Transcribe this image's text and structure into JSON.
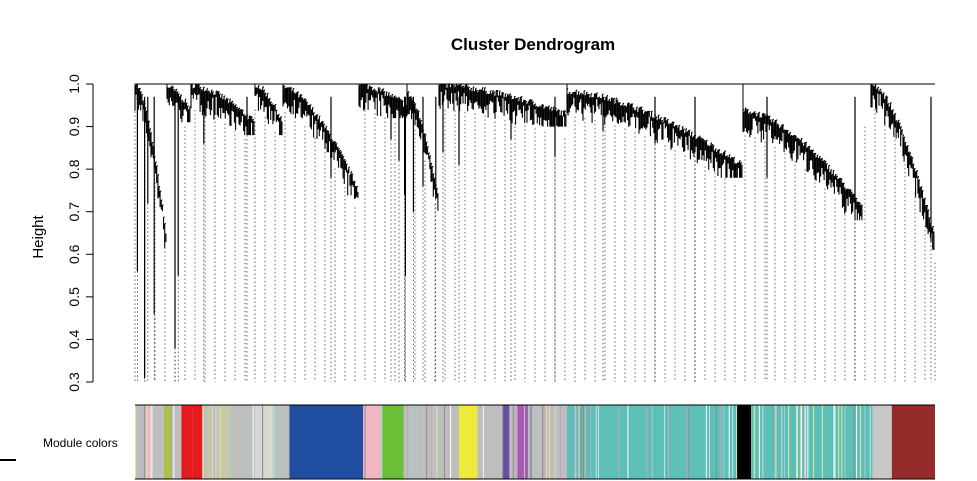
{
  "chart_data": {
    "type": "dendrogram",
    "title": "Cluster Dendrogram",
    "ylabel": "Height",
    "xlabel": "",
    "ylim": [
      0.3,
      1.0
    ],
    "yticks": [
      0.3,
      0.4,
      0.5,
      0.6,
      0.7,
      0.8,
      0.9,
      1.0
    ],
    "ytick_labels": [
      "0.3",
      "0.4",
      "0.5",
      "0.6",
      "0.7",
      "0.8",
      "0.9",
      "1.0"
    ],
    "module_colors_label": "Module colors",
    "clusters": [
      {
        "from": 0.0,
        "to": 0.04,
        "top": 0.995,
        "bottom": 0.62
      },
      {
        "from": 0.04,
        "to": 0.07,
        "top": 0.985,
        "bottom": 0.93
      },
      {
        "from": 0.07,
        "to": 0.15,
        "top": 0.99,
        "bottom": 0.9
      },
      {
        "from": 0.15,
        "to": 0.185,
        "top": 0.99,
        "bottom": 0.9
      },
      {
        "from": 0.185,
        "to": 0.28,
        "top": 0.985,
        "bottom": 0.74
      },
      {
        "from": 0.28,
        "to": 0.34,
        "top": 0.99,
        "bottom": 0.94
      },
      {
        "from": 0.34,
        "to": 0.38,
        "top": 0.97,
        "bottom": 0.72
      },
      {
        "from": 0.38,
        "to": 0.54,
        "top": 0.99,
        "bottom": 0.92
      },
      {
        "from": 0.54,
        "to": 0.76,
        "top": 0.975,
        "bottom": 0.8
      },
      {
        "from": 0.76,
        "to": 0.91,
        "top": 0.93,
        "bottom": 0.7
      },
      {
        "from": 0.92,
        "to": 1.0,
        "top": 0.995,
        "bottom": 0.63
      }
    ],
    "dips": [
      {
        "x": 0.003,
        "height": 0.56
      },
      {
        "x": 0.012,
        "height": 0.31
      },
      {
        "x": 0.016,
        "height": 0.72
      },
      {
        "x": 0.024,
        "height": 0.46
      },
      {
        "x": 0.05,
        "height": 0.38
      },
      {
        "x": 0.054,
        "height": 0.55
      },
      {
        "x": 0.086,
        "height": 0.86
      },
      {
        "x": 0.14,
        "height": 0.88
      },
      {
        "x": 0.245,
        "height": 0.78
      },
      {
        "x": 0.32,
        "height": 0.87
      },
      {
        "x": 0.337,
        "height": 0.74
      },
      {
        "x": 0.33,
        "height": 0.82
      },
      {
        "x": 0.348,
        "height": 0.7
      },
      {
        "x": 0.36,
        "height": 0.76
      },
      {
        "x": 0.376,
        "height": 0.73
      },
      {
        "x": 0.338,
        "height": 0.55
      },
      {
        "x": 0.385,
        "height": 0.84
      },
      {
        "x": 0.405,
        "height": 0.81
      },
      {
        "x": 0.47,
        "height": 0.87
      },
      {
        "x": 0.525,
        "height": 0.83
      },
      {
        "x": 0.585,
        "height": 0.89
      },
      {
        "x": 0.65,
        "height": 0.86
      },
      {
        "x": 0.7,
        "height": 0.84
      },
      {
        "x": 0.79,
        "height": 0.78
      },
      {
        "x": 0.9,
        "height": 0.72
      },
      {
        "x": 0.995,
        "height": 0.63
      }
    ],
    "module_colors": [
      {
        "from": 0.0,
        "to": 0.014,
        "color": "#bebebe"
      },
      {
        "from": 0.014,
        "to": 0.02,
        "color": "#f4b6c2"
      },
      {
        "from": 0.02,
        "to": 0.036,
        "color": "#bebebe"
      },
      {
        "from": 0.036,
        "to": 0.046,
        "color": "#a6c24b"
      },
      {
        "from": 0.046,
        "to": 0.058,
        "color": "#bebebe"
      },
      {
        "from": 0.058,
        "to": 0.072,
        "color": "#e41a1c"
      },
      {
        "from": 0.072,
        "to": 0.084,
        "color": "#e41a1c"
      },
      {
        "from": 0.084,
        "to": 0.09,
        "color": "#bebebe"
      },
      {
        "from": 0.09,
        "to": 0.12,
        "color": "#c8c8a8"
      },
      {
        "from": 0.12,
        "to": 0.15,
        "color": "#bebebe"
      },
      {
        "from": 0.15,
        "to": 0.175,
        "color": "#d6d6d6"
      },
      {
        "from": 0.175,
        "to": 0.193,
        "color": "#bebebe"
      },
      {
        "from": 0.193,
        "to": 0.285,
        "color": "#1f4ea1"
      },
      {
        "from": 0.285,
        "to": 0.308,
        "color": "#f4b6c2"
      },
      {
        "from": 0.308,
        "to": 0.336,
        "color": "#6bbf36"
      },
      {
        "from": 0.336,
        "to": 0.405,
        "color": "#bebebe"
      },
      {
        "from": 0.405,
        "to": 0.428,
        "color": "#eeea3a"
      },
      {
        "from": 0.428,
        "to": 0.46,
        "color": "#bebebe"
      },
      {
        "from": 0.46,
        "to": 0.468,
        "color": "#6a4ea6"
      },
      {
        "from": 0.468,
        "to": 0.478,
        "color": "#bebebe"
      },
      {
        "from": 0.478,
        "to": 0.495,
        "color": "#a85ab0"
      },
      {
        "from": 0.495,
        "to": 0.54,
        "color": "#bebebe"
      },
      {
        "from": 0.54,
        "to": 0.752,
        "color": "#5dc0b8"
      },
      {
        "from": 0.752,
        "to": 0.77,
        "color": "#000000"
      },
      {
        "from": 0.77,
        "to": 0.922,
        "color": "#5dc0b8"
      },
      {
        "from": 0.922,
        "to": 0.946,
        "color": "#c8c8c8"
      },
      {
        "from": 0.946,
        "to": 1.0,
        "color": "#962b2b"
      }
    ]
  }
}
